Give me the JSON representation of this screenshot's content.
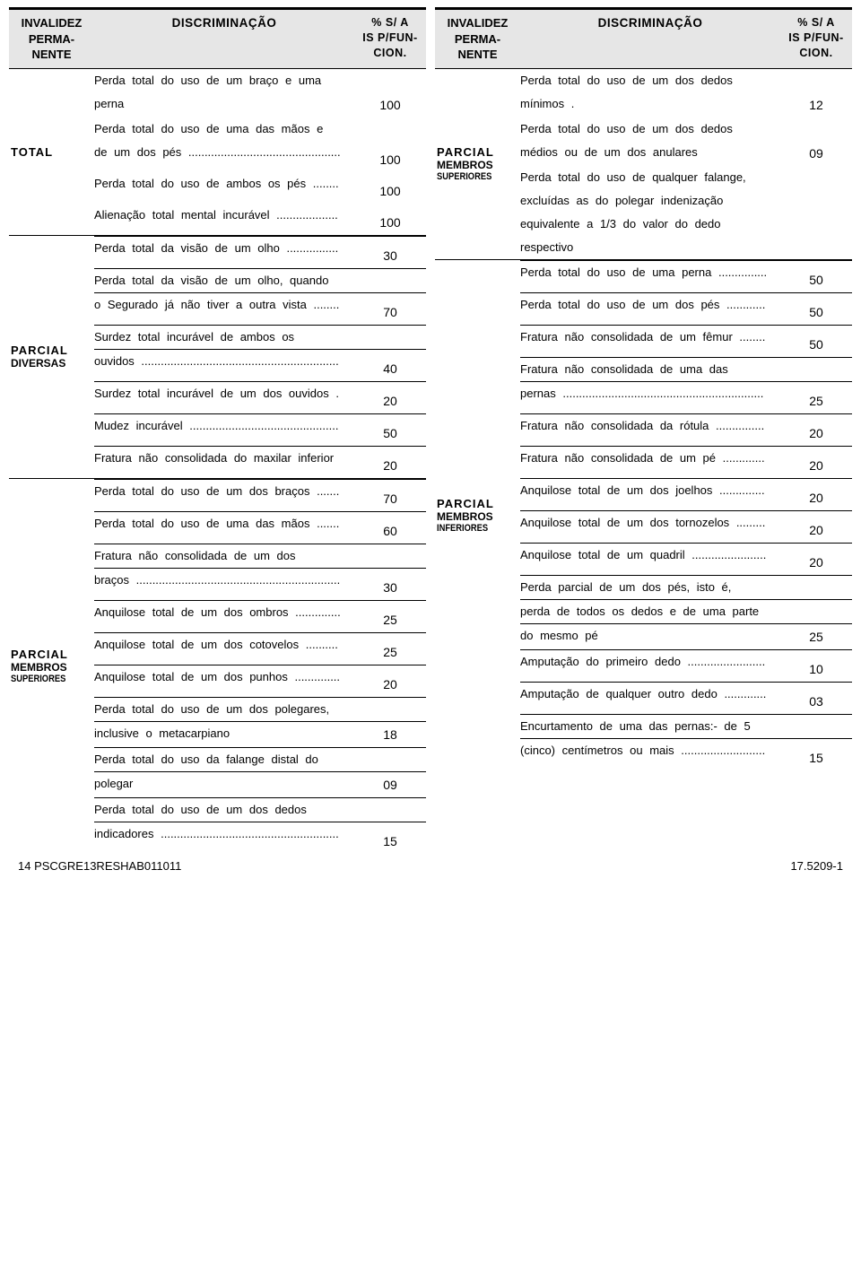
{
  "header": {
    "col1_lines": [
      "INVALIDEZ",
      "PERMA-",
      "NENTE"
    ],
    "col2": "DISCRIMINAÇÃO",
    "col3_lines": [
      "% S/ A",
      "IS P/FUN-",
      "CION."
    ]
  },
  "footer": {
    "left": "14      PSCGRE13RESHAB011011",
    "right": "17.5209-1"
  },
  "left_col": [
    {
      "label_lines": [
        "TOTAL"
      ],
      "label_small": [],
      "items": [
        {
          "text": "Perda total do uso de um braço e uma perna",
          "val": "100",
          "dots": false
        },
        {
          "text": "Perda total do uso de uma das mãos e de um dos pés",
          "val": "100",
          "dots": true
        },
        {
          "text": "Perda total do uso de ambos os pés",
          "val": "100",
          "dots": true
        },
        {
          "text": "Alienação total mental incurável",
          "val": "100",
          "dots": true
        }
      ]
    },
    {
      "label_lines": [
        "PARCIAL"
      ],
      "label_small": [
        "DIVERSAS"
      ],
      "items": [
        {
          "text": "Perda total da visão de um olho",
          "val": "30",
          "dots": true
        },
        {
          "text": "Perda total da visão de um olho, quando o Segurado já não tiver a outra vista",
          "val": "70",
          "dots": true
        },
        {
          "text": "Surdez total incurável de ambos os ouvidos",
          "val": "40",
          "dots": true
        },
        {
          "text": "Surdez total incurável de um dos ouvidos",
          "val": "20",
          "dots": true
        },
        {
          "text": "Mudez incurável",
          "val": "50",
          "dots": true
        },
        {
          "text": "Fratura não consolidada do maxilar inferior",
          "val": "20",
          "dots": true
        }
      ]
    },
    {
      "label_lines": [
        "PARCIAL"
      ],
      "label_small": [
        "MEMBROS",
        "SUPERIORES"
      ],
      "items": [
        {
          "text": "Perda total do uso de um dos braços",
          "val": "70",
          "dots": true
        },
        {
          "text": "Perda total do uso de uma das mãos",
          "val": "60",
          "dots": true
        },
        {
          "text": "Fratura não consolidada de um dos braços",
          "val": "30",
          "dots": true
        },
        {
          "text": "Anquilose total de um dos ombros",
          "val": "25",
          "dots": true
        },
        {
          "text": "Anquilose total de um dos cotovelos",
          "val": "25",
          "dots": true
        },
        {
          "text": "Anquilose total de um dos punhos",
          "val": "20",
          "dots": true
        },
        {
          "text": "Perda total do uso de um dos polegares, inclusive o metacarpiano",
          "val": "18",
          "dots": false
        },
        {
          "text": "Perda total do uso da falange distal do polegar",
          "val": "09",
          "dots": false
        },
        {
          "text": "Perda total do uso de um dos dedos indicadores",
          "val": "15",
          "dots": true
        }
      ]
    }
  ],
  "right_col": [
    {
      "label_lines": [
        "PARCIAL"
      ],
      "label_small": [
        "MEMBROS",
        "SUPERIORES"
      ],
      "items": [
        {
          "text": "Perda total do uso de um dos dedos mínimos .",
          "val": "12",
          "dots": false
        },
        {
          "text": "Perda total do uso de um dos dedos médios ou de um dos anulares",
          "val": "09",
          "dots": false
        },
        {
          "text": "Perda total do uso de qualquer falange, excluídas as do polegar indenização equivalente a 1/3 do valor do dedo respectivo",
          "val": "",
          "dots": false
        }
      ]
    },
    {
      "label_lines": [
        "PARCIAL"
      ],
      "label_small": [
        "MEMBROS",
        "INFERIORES"
      ],
      "items": [
        {
          "text": "Perda total do uso de uma perna",
          "val": "50",
          "dots": true
        },
        {
          "text": "Perda total do uso de um dos pés",
          "val": "50",
          "dots": true
        },
        {
          "text": "Fratura não consolidada de um fêmur",
          "val": "50",
          "dots": true
        },
        {
          "text": "Fratura não consolidada de uma das pernas",
          "val": "25",
          "dots": true
        },
        {
          "text": "Fratura não consolidada da rótula",
          "val": "20",
          "dots": true
        },
        {
          "text": "Fratura não consolidada de um pé",
          "val": "20",
          "dots": true
        },
        {
          "text": "Anquilose total de um dos joelhos",
          "val": "20",
          "dots": true
        },
        {
          "text": "Anquilose total de um dos tornozelos",
          "val": "20",
          "dots": true
        },
        {
          "text": "Anquilose total de um quadril",
          "val": "20",
          "dots": true
        },
        {
          "text": "Perda parcial de um dos pés, isto é, perda de todos os dedos e de uma parte do mesmo pé",
          "val": "25",
          "dots": false
        },
        {
          "text": "Amputação do primeiro dedo",
          "val": "10",
          "dots": true
        },
        {
          "text": "Amputação de qualquer outro dedo",
          "val": "03",
          "dots": true
        },
        {
          "text": "Encurtamento de uma das pernas:- de 5 (cinco) centímetros ou mais",
          "val": "15",
          "dots": true
        }
      ]
    }
  ]
}
